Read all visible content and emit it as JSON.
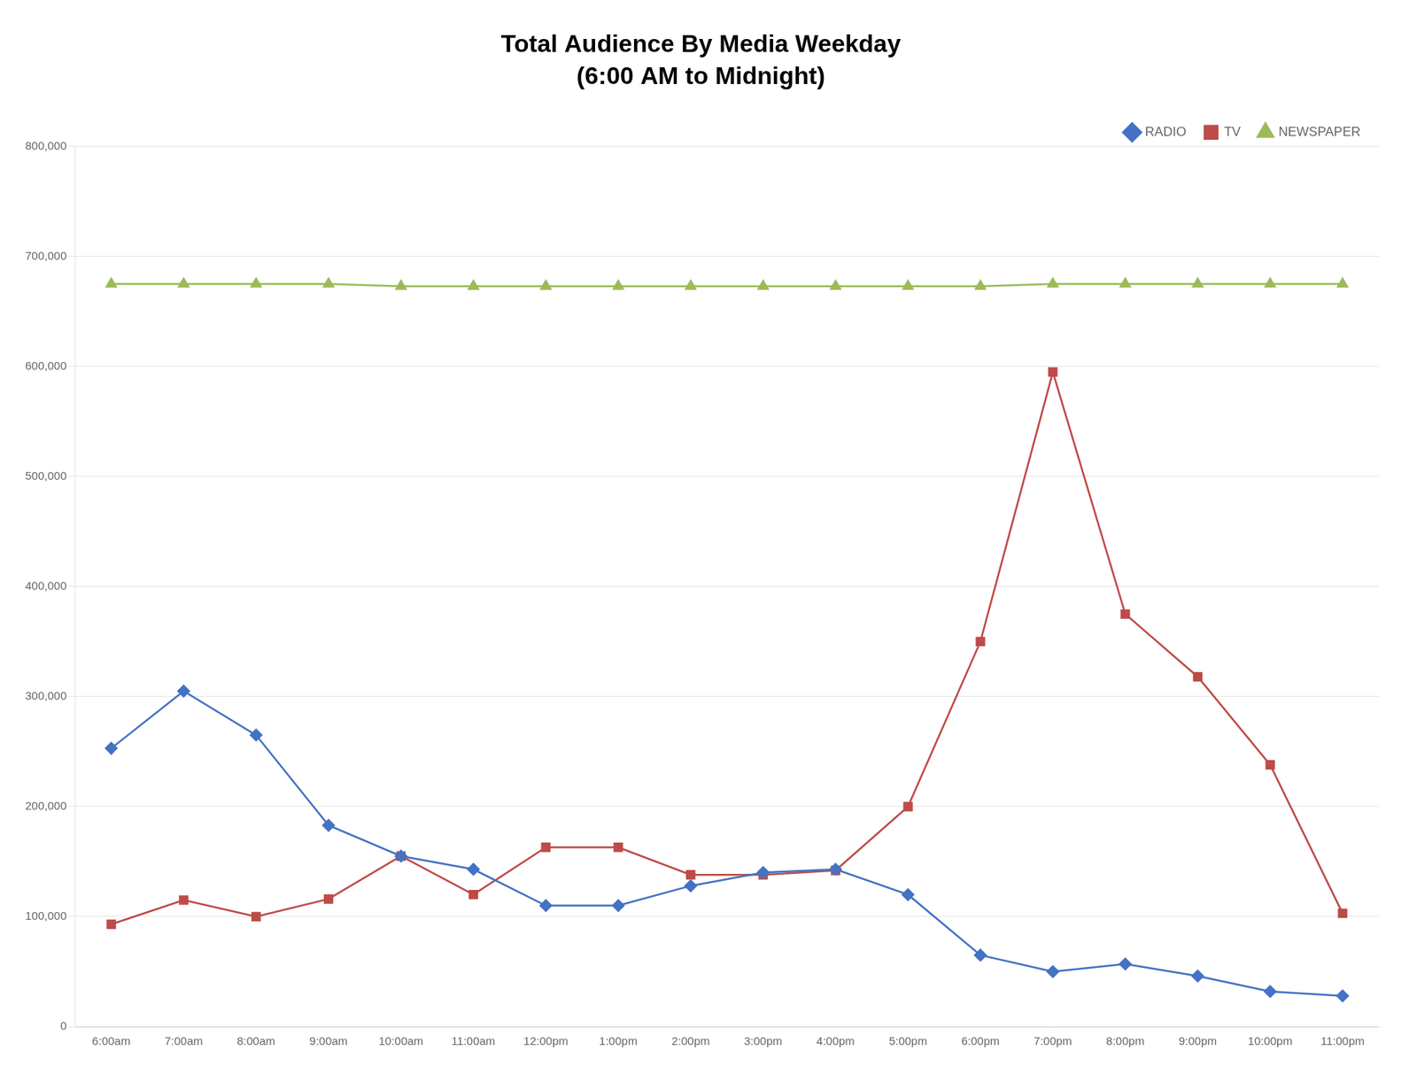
{
  "chart_data": {
    "type": "line",
    "title": "Total Audience By Media Weekday",
    "subtitle": "(6:00 AM to Midnight)",
    "categories": [
      "6:00am",
      "7:00am",
      "8:00am",
      "9:00am",
      "10:00am",
      "11:00am",
      "12:00pm",
      "1:00pm",
      "2:00pm",
      "3:00pm",
      "4:00pm",
      "5:00pm",
      "6:00pm",
      "7:00pm",
      "8:00pm",
      "9:00pm",
      "10:00pm",
      "11:00pm"
    ],
    "series": [
      {
        "name": "RADIO",
        "color": "#4472C4",
        "marker": "diamond",
        "values": [
          253000,
          305000,
          265000,
          183000,
          155000,
          143000,
          110000,
          110000,
          128000,
          140000,
          143000,
          120000,
          65000,
          50000,
          57000,
          46000,
          32000,
          28000
        ]
      },
      {
        "name": "TV",
        "color": "#BE4B48",
        "marker": "square",
        "values": [
          93000,
          115000,
          100000,
          116000,
          155000,
          120000,
          163000,
          163000,
          138000,
          138000,
          142000,
          200000,
          350000,
          595000,
          375000,
          318000,
          238000,
          103000
        ]
      },
      {
        "name": "NEWSPAPER",
        "color": "#9BBB59",
        "marker": "triangle",
        "values": [
          675000,
          675000,
          675000,
          675000,
          673000,
          673000,
          673000,
          673000,
          673000,
          673000,
          673000,
          673000,
          673000,
          675000,
          675000,
          675000,
          675000,
          675000
        ]
      }
    ],
    "ylim": [
      0,
      800000
    ],
    "yticks": [
      0,
      {
        "value": 100000,
        "label": "100,000"
      },
      {
        "value": 200000,
        "label": "200,000"
      },
      {
        "value": 300000,
        "label": "300,000"
      },
      {
        "value": 400000,
        "label": "400,000"
      },
      {
        "value": 500000,
        "label": "500,000"
      },
      {
        "value": 600000,
        "label": "600,000"
      },
      {
        "value": 700000,
        "label": "700,000"
      },
      {
        "value": 800000,
        "label": "800,000"
      }
    ],
    "grid": true,
    "legend": "upper right"
  }
}
